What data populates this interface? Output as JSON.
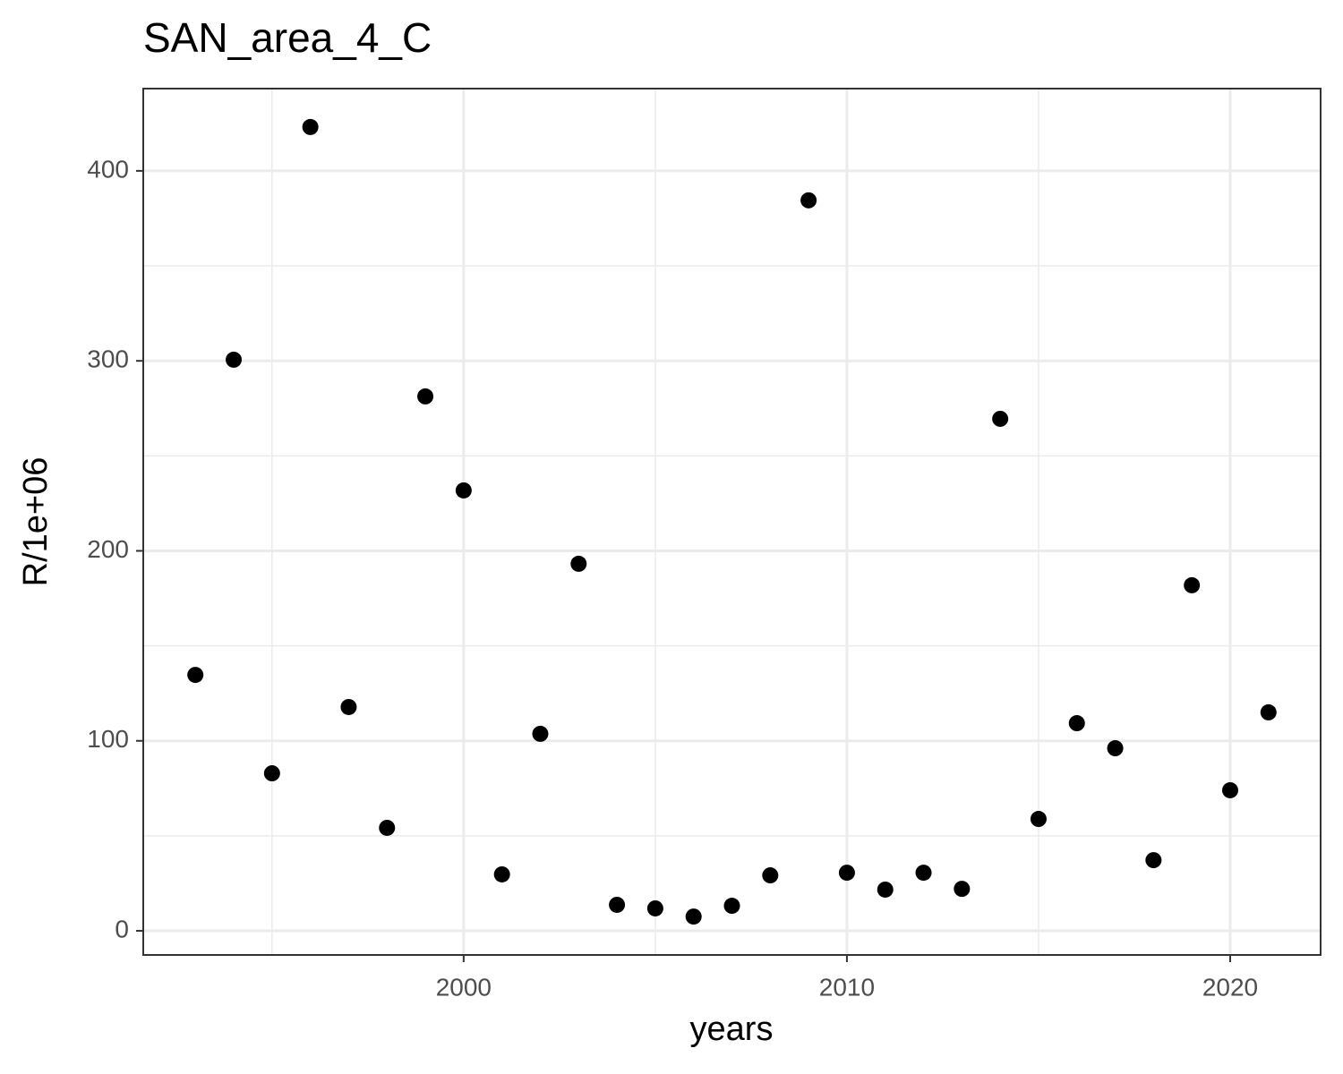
{
  "chart_data": {
    "type": "scatter",
    "title": "SAN_area_4_C",
    "x_label": "years",
    "y_label": "R/1e+06",
    "x": [
      1993,
      1994,
      1995,
      1996,
      1997,
      1998,
      1999,
      2000,
      2001,
      2002,
      2003,
      2004,
      2005,
      2006,
      2007,
      2008,
      2009,
      2010,
      2011,
      2012,
      2013,
      2014,
      2015,
      2016,
      2017,
      2018,
      2019,
      2020,
      2021
    ],
    "values": [
      134.7,
      300.6,
      82.9,
      423.1,
      117.8,
      54.2,
      281.3,
      231.8,
      29.7,
      103.7,
      193.2,
      13.7,
      11.8,
      7.5,
      13.2,
      29.2,
      384.5,
      30.6,
      21.7,
      30.6,
      22.1,
      269.5,
      58.9,
      109.3,
      96.1,
      37.2,
      181.9,
      74.0,
      115.0
    ],
    "color": "#000000",
    "xlim": [
      1991.64,
      2022.36
    ],
    "ylim": [
      -12.7,
      443.3
    ],
    "xticks": [
      2000,
      2010,
      2020
    ],
    "yticks": [
      0,
      100,
      200,
      300,
      400
    ],
    "xminor": [
      1995,
      2005,
      2015
    ],
    "yminor": [
      50,
      150,
      250,
      350
    ],
    "grid": true
  }
}
